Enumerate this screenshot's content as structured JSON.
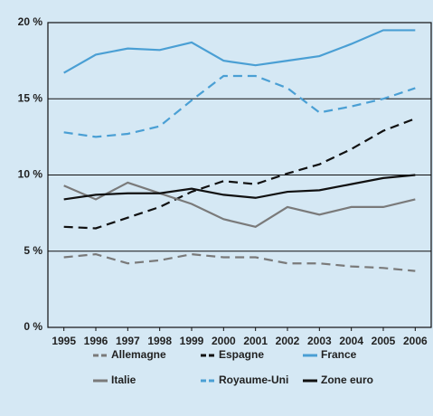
{
  "chart_data": {
    "type": "line",
    "categories": [
      "1995",
      "1996",
      "1997",
      "1998",
      "1999",
      "2000",
      "2001",
      "2002",
      "2003",
      "2004",
      "2005",
      "2006"
    ],
    "ylim": [
      0,
      20
    ],
    "yticks": [
      {
        "value": 0,
        "label": "0 %"
      },
      {
        "value": 5,
        "label": "5 %"
      },
      {
        "value": 10,
        "label": "10 %"
      },
      {
        "value": 15,
        "label": "15 %"
      },
      {
        "value": 20,
        "label": "20 %"
      }
    ],
    "grid": true,
    "legend": "bottom",
    "series": [
      {
        "name": "Allemagne",
        "color": "#7a7a7a",
        "dashed": true,
        "values": [
          4.6,
          4.8,
          4.2,
          4.4,
          4.8,
          4.6,
          4.6,
          4.2,
          4.2,
          4.0,
          3.9,
          3.7
        ]
      },
      {
        "name": "Espagne",
        "color": "#111111",
        "dashed": true,
        "values": [
          6.6,
          6.5,
          7.2,
          7.9,
          8.9,
          9.6,
          9.4,
          10.1,
          10.7,
          11.7,
          12.9,
          13.7
        ]
      },
      {
        "name": "France",
        "color": "#4a9fd4",
        "dashed": false,
        "values": [
          16.7,
          17.9,
          18.3,
          18.2,
          18.7,
          17.5,
          17.2,
          17.5,
          17.8,
          18.6,
          19.5,
          19.5
        ]
      },
      {
        "name": "Italie",
        "color": "#7a7a7a",
        "dashed": false,
        "values": [
          9.3,
          8.4,
          9.5,
          8.8,
          8.1,
          7.1,
          6.6,
          7.9,
          7.4,
          7.9,
          7.9,
          8.4
        ]
      },
      {
        "name": "Royaume-Uni",
        "color": "#4a9fd4",
        "dashed": true,
        "values": [
          12.8,
          12.5,
          12.7,
          13.2,
          14.9,
          16.5,
          16.5,
          15.7,
          14.1,
          14.5,
          15.0,
          15.7
        ]
      },
      {
        "name": "Zone euro",
        "color": "#111111",
        "dashed": false,
        "values": [
          8.4,
          8.7,
          8.8,
          8.8,
          9.1,
          8.7,
          8.5,
          8.9,
          9.0,
          9.4,
          9.8,
          10.0
        ]
      }
    ]
  }
}
